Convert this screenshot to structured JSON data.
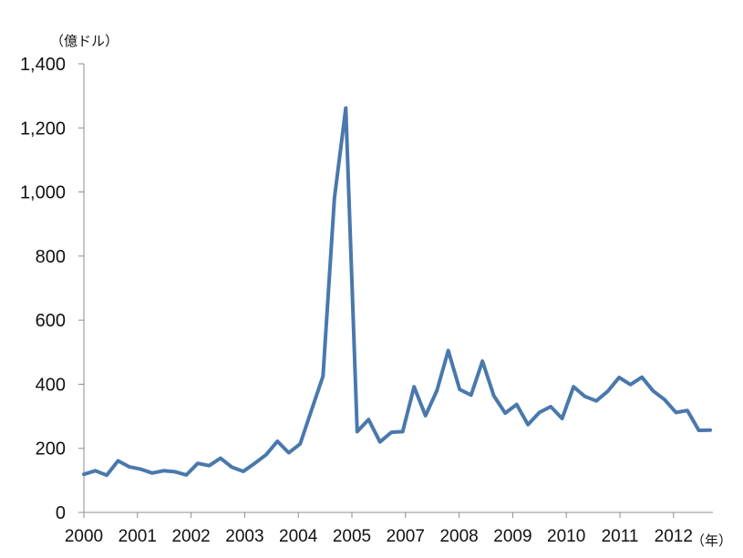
{
  "chart_data": {
    "type": "line",
    "title": "",
    "xlabel": "",
    "ylabel": "",
    "ylabel_unit": "（億ドル）",
    "xlabel_unit": "（年）",
    "ylim": [
      0,
      1400
    ],
    "y_ticks": [
      "0",
      "200",
      "400",
      "600",
      "800",
      "1,000",
      "1,200",
      "1,400"
    ],
    "y_tick_values": [
      0,
      200,
      400,
      600,
      800,
      1000,
      1200,
      1400
    ],
    "x_ticks": [
      "2000",
      "2001",
      "2002",
      "2003",
      "2004",
      "2005",
      "2007",
      "2008",
      "2009",
      "2010",
      "2011",
      "2012"
    ],
    "grid": false,
    "legend": "none",
    "colors": {
      "series": "#4a78ad",
      "axis": "#8c8c8c"
    },
    "series": [
      {
        "values": [
          119,
          130,
          116,
          161,
          142,
          135,
          123,
          130,
          127,
          117,
          153,
          146,
          169,
          141,
          128,
          153,
          180,
          222,
          186,
          214,
          320,
          425,
          980,
          1262,
          252,
          290,
          220,
          250,
          252,
          392,
          302,
          380,
          505,
          384,
          366,
          472,
          364,
          310,
          337,
          274,
          312,
          330,
          293,
          392,
          362,
          348,
          378,
          421,
          399,
          422,
          379,
          352,
          312,
          318,
          256,
          257
        ]
      }
    ]
  }
}
